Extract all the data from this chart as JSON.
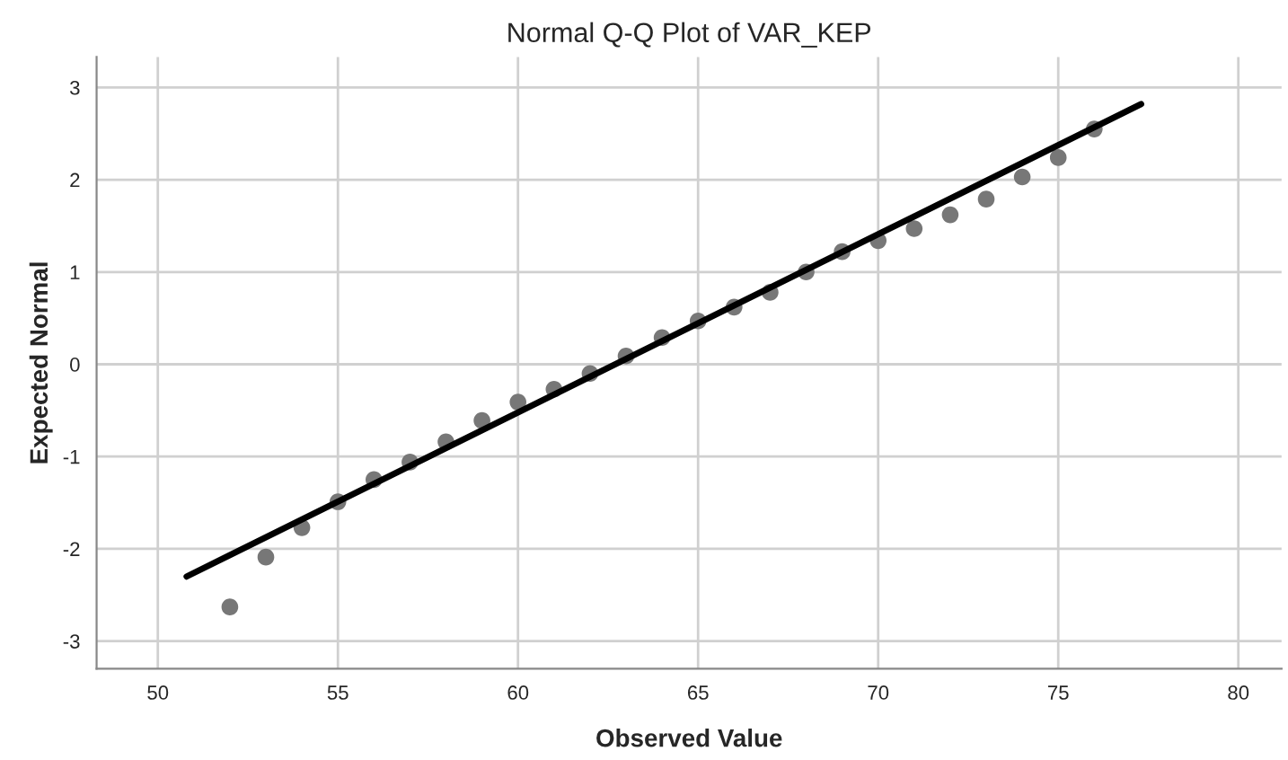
{
  "chart_data": {
    "type": "scatter",
    "title": "Normal Q-Q Plot of VAR_KEP",
    "xlabel": "Observed Value",
    "ylabel": "Expected Normal",
    "series": [
      {
        "color": "#777777",
        "marker": "circle",
        "x": [
          52,
          53,
          54,
          55,
          56,
          57,
          58,
          59,
          60,
          61,
          62,
          63,
          64,
          65,
          66,
          67,
          68,
          69,
          70,
          71,
          72,
          73,
          74,
          75,
          76
        ],
        "values": [
          -2.63,
          -2.09,
          -1.77,
          -1.49,
          -1.25,
          -1.06,
          -0.84,
          -0.61,
          -0.41,
          -0.27,
          -0.1,
          0.09,
          0.29,
          0.47,
          0.62,
          0.78,
          1.0,
          1.22,
          1.34,
          1.47,
          1.62,
          1.79,
          2.03,
          2.24,
          2.55
        ]
      },
      {
        "type": "line",
        "color": "#000000",
        "line_style": "solid",
        "x": [
          50.8,
          77.3
        ],
        "values": [
          -2.3,
          2.82
        ]
      }
    ],
    "xlim": [
      48.3,
      81.2
    ],
    "ylim": [
      -3.3,
      3.33
    ],
    "xticks": [
      50,
      55,
      60,
      65,
      70,
      75,
      80
    ],
    "yticks": [
      -3,
      -2,
      -1,
      0,
      1,
      2,
      3
    ],
    "grid": true,
    "legend": false
  }
}
